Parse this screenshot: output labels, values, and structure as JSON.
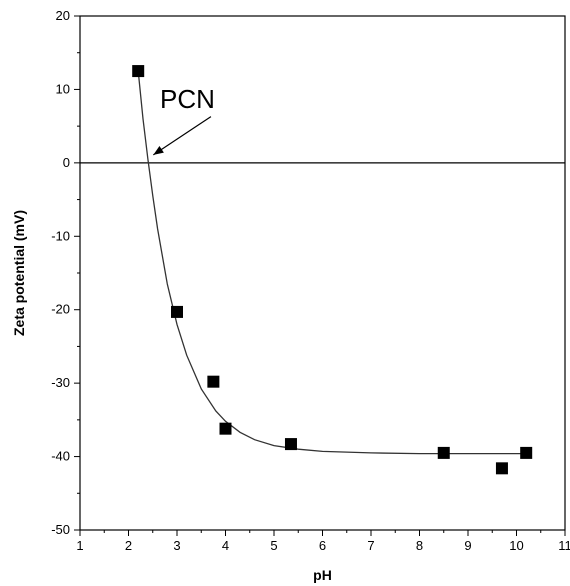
{
  "chart_data": {
    "type": "scatter",
    "title": "",
    "xlabel": "pH",
    "ylabel": "Zeta potential (mV)",
    "xlim": [
      1,
      11
    ],
    "ylim": [
      -50,
      20
    ],
    "xticks": [
      1,
      2,
      3,
      4,
      5,
      6,
      7,
      8,
      9,
      10,
      11
    ],
    "yticks": [
      20,
      10,
      0,
      -10,
      -20,
      -30,
      -40,
      -50
    ],
    "grid": false,
    "legend": false,
    "reference_line_y": 0,
    "marker": "square",
    "points": [
      {
        "x": 2.2,
        "y": 12.5
      },
      {
        "x": 3.0,
        "y": -20.3
      },
      {
        "x": 3.75,
        "y": -29.8
      },
      {
        "x": 4.0,
        "y": -36.2
      },
      {
        "x": 5.35,
        "y": -38.3
      },
      {
        "x": 8.5,
        "y": -39.5
      },
      {
        "x": 9.7,
        "y": -41.6
      },
      {
        "x": 10.2,
        "y": -39.5
      }
    ],
    "fit_curve": {
      "x": [
        2.2,
        2.3,
        2.4,
        2.5,
        2.6,
        2.8,
        3.0,
        3.2,
        3.5,
        3.8,
        4.0,
        4.3,
        4.6,
        5.0,
        5.5,
        6.0,
        7.0,
        8.0,
        9.0,
        10.2
      ],
      "y": [
        12.5,
        6.0,
        0.5,
        -4.5,
        -9.0,
        -16.5,
        -22.0,
        -26.2,
        -30.8,
        -33.8,
        -35.2,
        -36.7,
        -37.7,
        -38.5,
        -39.0,
        -39.3,
        -39.5,
        -39.6,
        -39.6,
        -39.6
      ]
    },
    "annotation": {
      "text": "PCN",
      "arrow_to": {
        "x": 2.45,
        "y": 0
      }
    }
  }
}
